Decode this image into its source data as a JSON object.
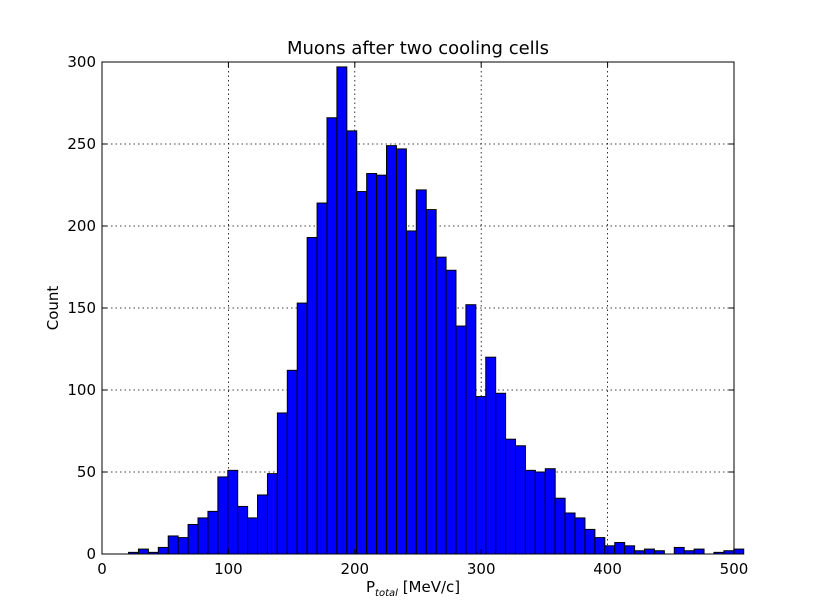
{
  "chart_data": {
    "type": "bar",
    "title": "Muons after two cooling cells",
    "xlabel_main": "P",
    "xlabel_sub": "total",
    "xlabel_unit": " [MeV/c]",
    "ylabel": "Count",
    "xlim": [
      0,
      500
    ],
    "ylim": [
      0,
      300
    ],
    "xticks": [
      0,
      100,
      200,
      300,
      400,
      500
    ],
    "yticks": [
      0,
      50,
      100,
      150,
      200,
      250,
      300
    ],
    "grid": true,
    "bar_color": "#0000ff",
    "bin_width": 7.85,
    "bin_start": 21,
    "counts": [
      1,
      3,
      1,
      4,
      11,
      10,
      18,
      22,
      26,
      47,
      51,
      29,
      22,
      36,
      49,
      86,
      112,
      153,
      193,
      214,
      266,
      297,
      258,
      221,
      232,
      231,
      249,
      247,
      197,
      222,
      210,
      181,
      173,
      139,
      152,
      96,
      120,
      98,
      70,
      66,
      51,
      50,
      52,
      34,
      25,
      22,
      15,
      10,
      5,
      7,
      5,
      2,
      3,
      2,
      0,
      4,
      2,
      3,
      0,
      1,
      2,
      3
    ]
  }
}
